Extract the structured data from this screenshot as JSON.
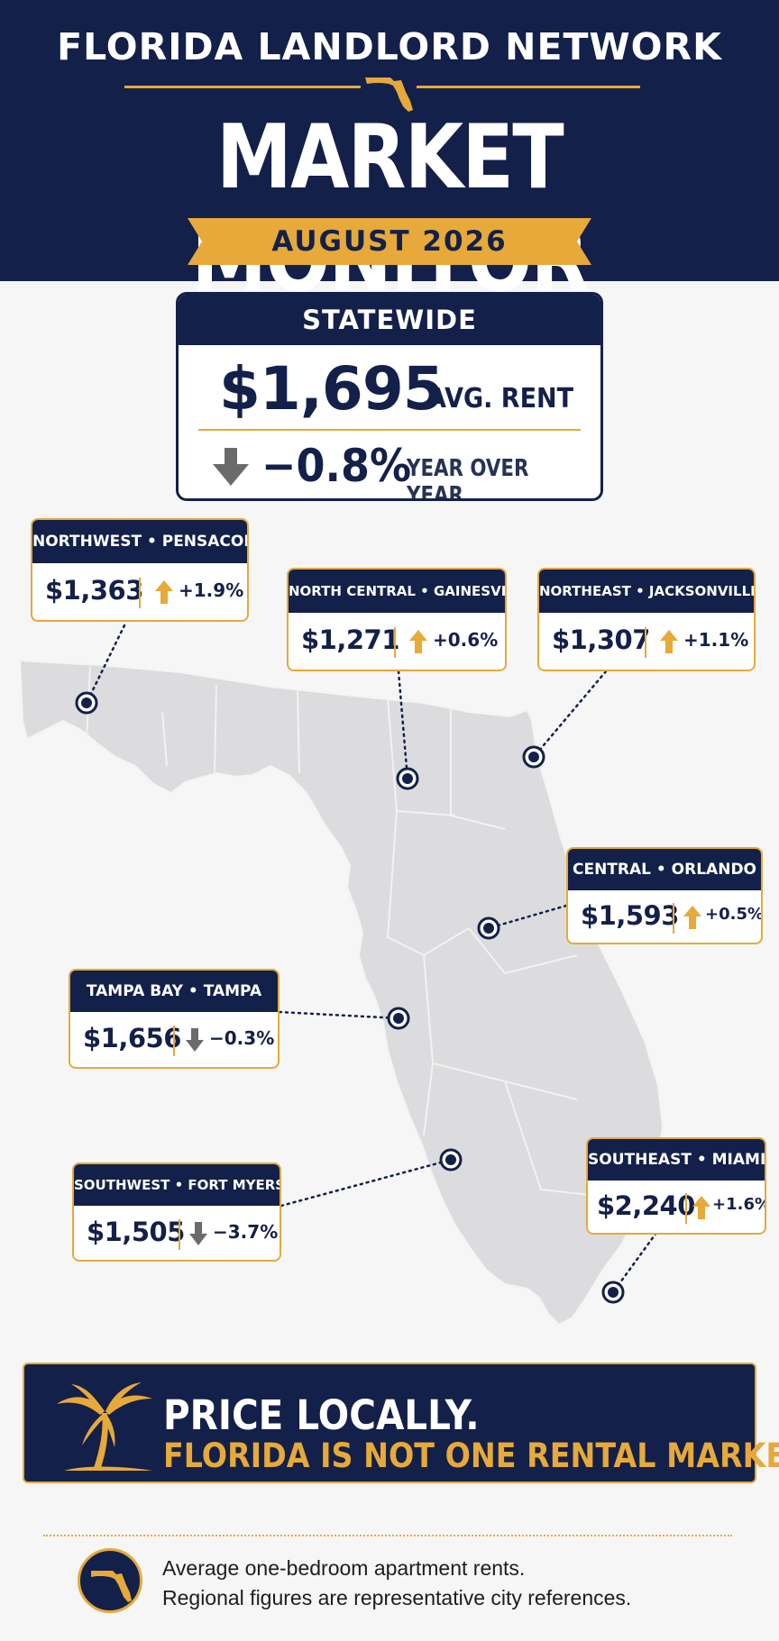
{
  "header": {
    "brand": "FLORIDA LANDLORD NETWORK",
    "title": "MARKET MONITOR",
    "period": "AUGUST 2026"
  },
  "statewide": {
    "heading": "STATEWIDE",
    "avg_rent": "$1,695",
    "avg_label": "AVG. RENT",
    "change": "−0.8%",
    "change_label": "YEAR OVER YEAR",
    "direction": "down"
  },
  "regions": [
    {
      "label": "NORTHWEST • PENSACOLA",
      "rent": "$1,363",
      "change": "+1.9%",
      "direction": "up"
    },
    {
      "label": "NORTH CENTRAL • GAINESVILLE",
      "rent": "$1,271",
      "change": "+0.6%",
      "direction": "up"
    },
    {
      "label": "NORTHEAST • JACKSONVILLE",
      "rent": "$1,307",
      "change": "+1.1%",
      "direction": "up"
    },
    {
      "label": "CENTRAL • ORLANDO",
      "rent": "$1,593",
      "change": "+0.5%",
      "direction": "up"
    },
    {
      "label": "TAMPA BAY • TAMPA",
      "rent": "$1,656",
      "change": "−0.3%",
      "direction": "down"
    },
    {
      "label": "SOUTHWEST • FORT MYERS",
      "rent": "$1,505",
      "change": "−3.7%",
      "direction": "down"
    },
    {
      "label": "SOUTHEAST • MIAMI",
      "rent": "$2,240",
      "change": "+1.6%",
      "direction": "up"
    }
  ],
  "callout": {
    "line1": "PRICE LOCALLY.",
    "line2": "FLORIDA IS NOT ONE RENTAL MARKET."
  },
  "footnote": {
    "line1": "Average one-bedroom apartment rents.",
    "line2": "Regional figures are representative city references."
  },
  "colors": {
    "navy": "#13204a",
    "gold": "#e6a93a",
    "down_gray": "#6b6b6b",
    "map_gray": "#dcdcde"
  },
  "icons": [
    "florida-outline-icon",
    "arrow-up-icon",
    "arrow-down-icon",
    "palm-tree-icon",
    "location-pin-icon"
  ]
}
